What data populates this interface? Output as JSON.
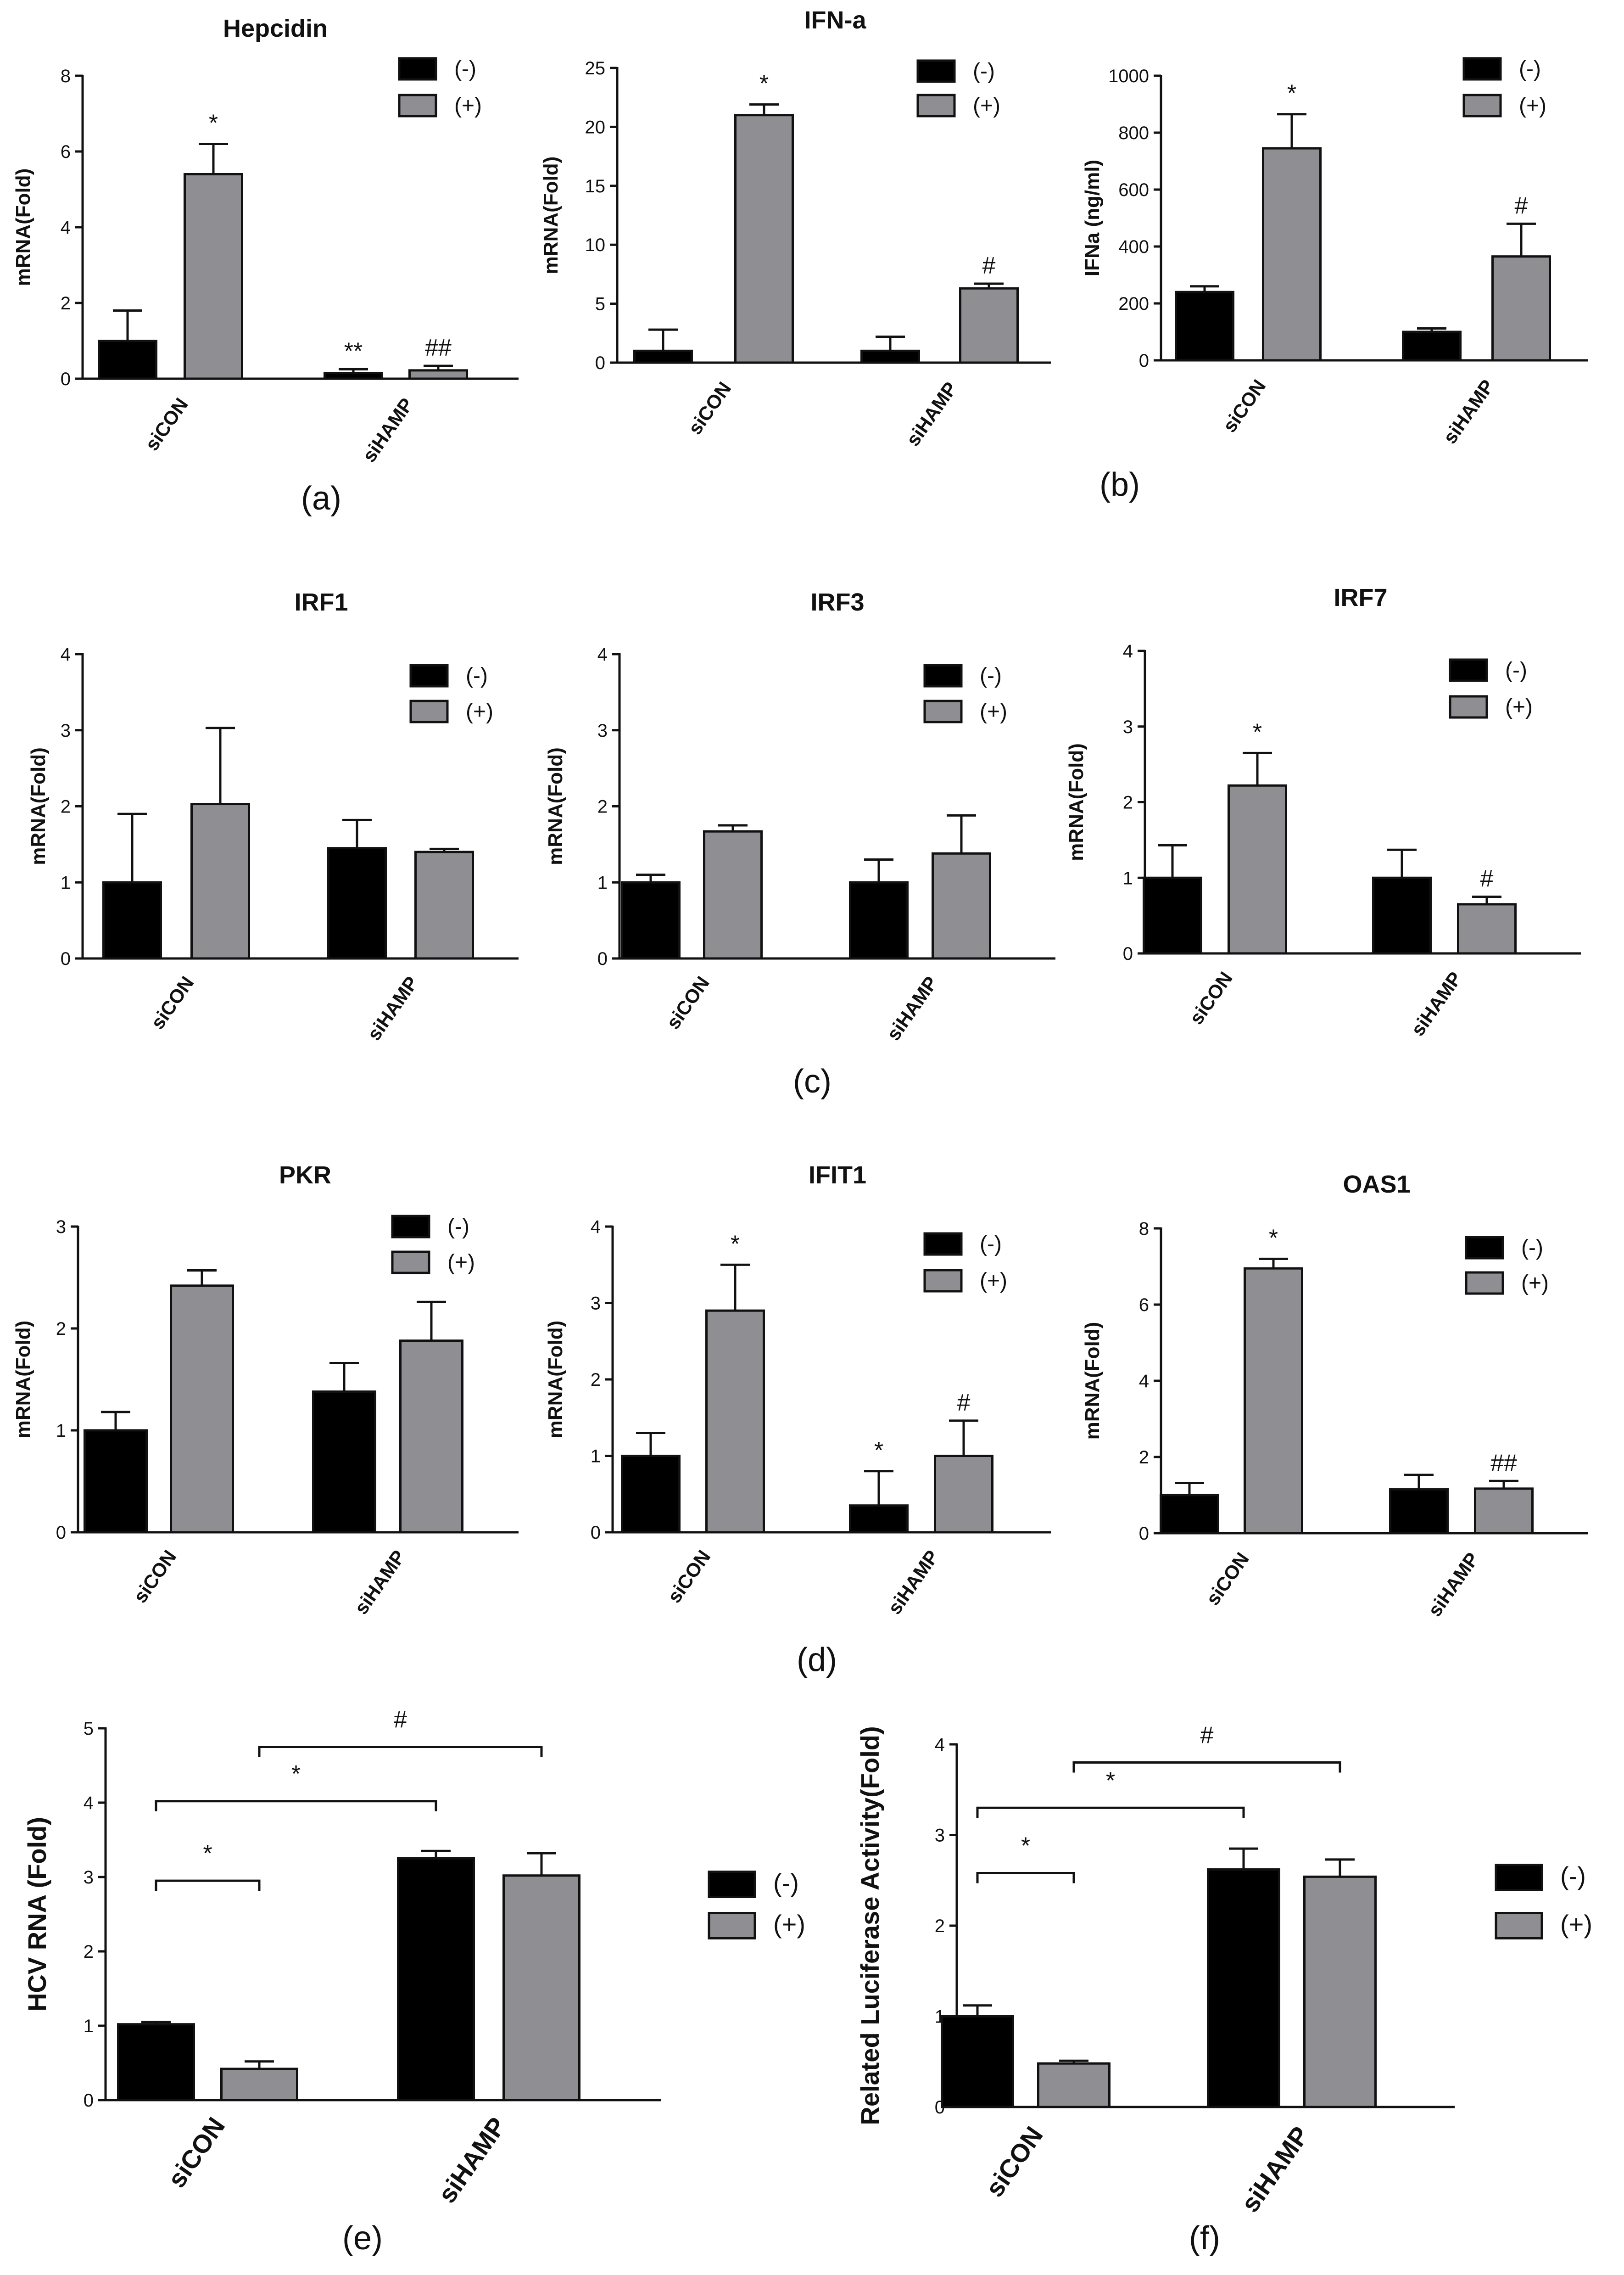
{
  "colors": {
    "neg": "#000000",
    "pos": "#8e8e93",
    "axis": "#111111"
  },
  "legend": {
    "neg": "(-)",
    "pos": "(+)"
  },
  "panel_labels": [
    "(a)",
    "(b)",
    "(c)",
    "(d)",
    "(e)",
    "(f)"
  ],
  "chart_data": [
    {
      "id": "hepcidin",
      "type": "bar",
      "title": "Hepcidin",
      "ylabel": "mRNA(Fold)",
      "categories": [
        "siCON",
        "siHAMP"
      ],
      "ylim": [
        0,
        8
      ],
      "yticks": [
        "0",
        "2",
        "4",
        "6",
        "8"
      ],
      "series": [
        {
          "name": "(-)",
          "values": [
            1.0,
            0.15
          ],
          "errors": [
            0.8,
            0.1
          ],
          "annotations": [
            "",
            "**"
          ]
        },
        {
          "name": "(+)",
          "values": [
            5.4,
            0.22
          ],
          "errors": [
            0.8,
            0.12
          ],
          "annotations": [
            "*",
            "##"
          ]
        }
      ]
    },
    {
      "id": "ifn-a",
      "type": "bar",
      "title": "IFN-a",
      "ylabel": "mRNA(Fold)",
      "categories": [
        "siCON",
        "siHAMP"
      ],
      "ylim": [
        0,
        25
      ],
      "yticks": [
        "0",
        "5",
        "10",
        "15",
        "20",
        "25"
      ],
      "series": [
        {
          "name": "(-)",
          "values": [
            1.0,
            1.0
          ],
          "errors": [
            1.8,
            1.2
          ],
          "annotations": [
            "",
            ""
          ]
        },
        {
          "name": "(+)",
          "values": [
            21.0,
            6.3
          ],
          "errors": [
            0.9,
            0.4
          ],
          "annotations": [
            "*",
            "#"
          ]
        }
      ]
    },
    {
      "id": "ifna-elisa",
      "type": "bar",
      "title": "",
      "ylabel": "IFNa (ng/ml)",
      "categories": [
        "siCON",
        "siHAMP"
      ],
      "ylim": [
        0,
        1000
      ],
      "yticks": [
        "0",
        "200",
        "400",
        "600",
        "800",
        "1000"
      ],
      "series": [
        {
          "name": "(-)",
          "values": [
            240,
            100
          ],
          "errors": [
            20,
            12
          ],
          "annotations": [
            "",
            ""
          ]
        },
        {
          "name": "(+)",
          "values": [
            745,
            365
          ],
          "errors": [
            120,
            115
          ],
          "annotations": [
            "*",
            "#"
          ]
        }
      ]
    },
    {
      "id": "irf1",
      "type": "bar",
      "title": "IRF1",
      "ylabel": "mRNA(Fold)",
      "categories": [
        "siCON",
        "siHAMP"
      ],
      "ylim": [
        0,
        4
      ],
      "yticks": [
        "0",
        "1",
        "2",
        "3",
        "4"
      ],
      "series": [
        {
          "name": "(-)",
          "values": [
            1.0,
            1.45
          ],
          "errors": [
            0.9,
            0.37
          ],
          "annotations": [
            "",
            ""
          ]
        },
        {
          "name": "(+)",
          "values": [
            2.03,
            1.4
          ],
          "errors": [
            1.0,
            0.04
          ],
          "annotations": [
            "",
            ""
          ]
        }
      ]
    },
    {
      "id": "irf3",
      "type": "bar",
      "title": "IRF3",
      "ylabel": "mRNA(Fold)",
      "categories": [
        "siCON",
        "siHAMP"
      ],
      "ylim": [
        0,
        4
      ],
      "yticks": [
        "0",
        "1",
        "2",
        "3",
        "4"
      ],
      "series": [
        {
          "name": "(-)",
          "values": [
            1.0,
            1.0
          ],
          "errors": [
            0.1,
            0.3
          ],
          "annotations": [
            "",
            ""
          ]
        },
        {
          "name": "(+)",
          "values": [
            1.67,
            1.38
          ],
          "errors": [
            0.08,
            0.5
          ],
          "annotations": [
            "",
            ""
          ]
        }
      ]
    },
    {
      "id": "irf7",
      "type": "bar",
      "title": "IRF7",
      "ylabel": "mRNA(Fold)",
      "categories": [
        "siCON",
        "siHAMP"
      ],
      "ylim": [
        0,
        4
      ],
      "yticks": [
        "0",
        "1",
        "2",
        "3",
        "4"
      ],
      "series": [
        {
          "name": "(-)",
          "values": [
            1.0,
            1.0
          ],
          "errors": [
            0.43,
            0.37
          ],
          "annotations": [
            "",
            ""
          ]
        },
        {
          "name": "(+)",
          "values": [
            2.22,
            0.65
          ],
          "errors": [
            0.43,
            0.1
          ],
          "annotations": [
            "*",
            "#"
          ]
        }
      ]
    },
    {
      "id": "pkr",
      "type": "bar",
      "title": "PKR",
      "ylabel": "mRNA(Fold)",
      "categories": [
        "siCON",
        "siHAMP"
      ],
      "ylim": [
        0,
        3
      ],
      "yticks": [
        "0",
        "1",
        "2",
        "3"
      ],
      "series": [
        {
          "name": "(-)",
          "values": [
            1.0,
            1.38
          ],
          "errors": [
            0.18,
            0.28
          ],
          "annotations": [
            "",
            ""
          ]
        },
        {
          "name": "(+)",
          "values": [
            2.42,
            1.88
          ],
          "errors": [
            0.15,
            0.38
          ],
          "annotations": [
            "",
            ""
          ]
        }
      ]
    },
    {
      "id": "ifit1",
      "type": "bar",
      "title": "IFIT1",
      "ylabel": "mRNA(Fold)",
      "categories": [
        "siCON",
        "siHAMP"
      ],
      "ylim": [
        0,
        4
      ],
      "yticks": [
        "0",
        "1",
        "2",
        "3",
        "4"
      ],
      "series": [
        {
          "name": "(-)",
          "values": [
            1.0,
            0.35
          ],
          "errors": [
            0.3,
            0.45
          ],
          "annotations": [
            "",
            "*"
          ]
        },
        {
          "name": "(+)",
          "values": [
            2.9,
            1.0
          ],
          "errors": [
            0.6,
            0.46
          ],
          "annotations": [
            "*",
            "#"
          ]
        }
      ]
    },
    {
      "id": "oas1",
      "type": "bar",
      "title": "OAS1",
      "ylabel": "mRNA(Fold)",
      "categories": [
        "siCON",
        "siHAMP"
      ],
      "ylim": [
        0,
        8
      ],
      "yticks": [
        "0",
        "2",
        "4",
        "6",
        "8"
      ],
      "series": [
        {
          "name": "(-)",
          "values": [
            1.0,
            1.15
          ],
          "errors": [
            0.32,
            0.38
          ],
          "annotations": [
            "",
            ""
          ]
        },
        {
          "name": "(+)",
          "values": [
            6.95,
            1.17
          ],
          "errors": [
            0.25,
            0.2
          ],
          "annotations": [
            "*",
            "##"
          ]
        }
      ]
    },
    {
      "id": "hcv-rna",
      "type": "bar",
      "title": "",
      "ylabel": "HCV RNA (Fold)",
      "categories": [
        "siCON",
        "siHAMP"
      ],
      "ylim": [
        0,
        5
      ],
      "yticks": [
        "0",
        "1",
        "2",
        "3",
        "4",
        "5"
      ],
      "series": [
        {
          "name": "(-)",
          "values": [
            1.02,
            3.25
          ],
          "errors": [
            0.03,
            0.1
          ],
          "annotations": [
            "",
            ""
          ]
        },
        {
          "name": "(+)",
          "values": [
            0.42,
            3.02
          ],
          "errors": [
            0.1,
            0.3
          ],
          "annotations": [
            "",
            ""
          ]
        }
      ],
      "brackets": [
        {
          "from": [
            0,
            0
          ],
          "to": [
            0,
            1
          ],
          "level": 2.95,
          "label": "*"
        },
        {
          "from": [
            0,
            0
          ],
          "to": [
            1,
            0
          ],
          "level": 4.02,
          "label": "*"
        },
        {
          "from": [
            0,
            1
          ],
          "to": [
            1,
            1
          ],
          "level": 4.75,
          "label": "#"
        }
      ]
    },
    {
      "id": "luciferase",
      "type": "bar",
      "title": "",
      "ylabel": "Related Luciferase Activity(Fold)",
      "categories": [
        "siCON",
        "siHAMP"
      ],
      "ylim": [
        0,
        4
      ],
      "yticks": [
        "0",
        "1",
        "2",
        "3",
        "4"
      ],
      "series": [
        {
          "name": "(-)",
          "values": [
            1.0,
            2.62
          ],
          "errors": [
            0.12,
            0.23
          ],
          "annotations": [
            "",
            ""
          ]
        },
        {
          "name": "(+)",
          "values": [
            0.48,
            2.54
          ],
          "errors": [
            0.03,
            0.19
          ],
          "annotations": [
            "",
            ""
          ]
        }
      ],
      "brackets": [
        {
          "from": [
            0,
            0
          ],
          "to": [
            0,
            1
          ],
          "level": 2.58,
          "label": "*"
        },
        {
          "from": [
            0,
            0
          ],
          "to": [
            1,
            0
          ],
          "level": 3.3,
          "label": "*"
        },
        {
          "from": [
            0,
            1
          ],
          "to": [
            1,
            1
          ],
          "level": 3.8,
          "label": "#"
        }
      ]
    }
  ]
}
